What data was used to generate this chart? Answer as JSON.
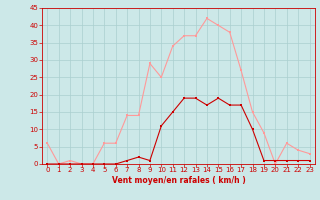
{
  "hours": [
    0,
    1,
    2,
    3,
    4,
    5,
    6,
    7,
    8,
    9,
    10,
    11,
    12,
    13,
    14,
    15,
    16,
    17,
    18,
    19,
    20,
    21,
    22,
    23
  ],
  "wind_avg": [
    0,
    0,
    0,
    0,
    0,
    0,
    0,
    1,
    2,
    1,
    11,
    15,
    19,
    19,
    17,
    19,
    17,
    17,
    10,
    1,
    1,
    1,
    1,
    1
  ],
  "wind_gust": [
    6,
    0,
    1,
    0,
    0,
    6,
    6,
    14,
    14,
    29,
    25,
    34,
    37,
    37,
    42,
    40,
    38,
    27,
    15,
    9,
    0,
    6,
    4,
    3
  ],
  "xlabel": "Vent moyen/en rafales ( km/h )",
  "ylim": [
    0,
    45
  ],
  "xlim_min": -0.5,
  "xlim_max": 23.5,
  "yticks": [
    0,
    5,
    10,
    15,
    20,
    25,
    30,
    35,
    40,
    45
  ],
  "xticks": [
    0,
    1,
    2,
    3,
    4,
    5,
    6,
    7,
    8,
    9,
    10,
    11,
    12,
    13,
    14,
    15,
    16,
    17,
    18,
    19,
    20,
    21,
    22,
    23
  ],
  "bg_color": "#cce8e8",
  "grid_color": "#aacfcf",
  "avg_color": "#cc0000",
  "gust_color": "#ff9999",
  "tick_color": "#cc0000",
  "xlabel_color": "#cc0000",
  "spine_color": "#cc0000"
}
